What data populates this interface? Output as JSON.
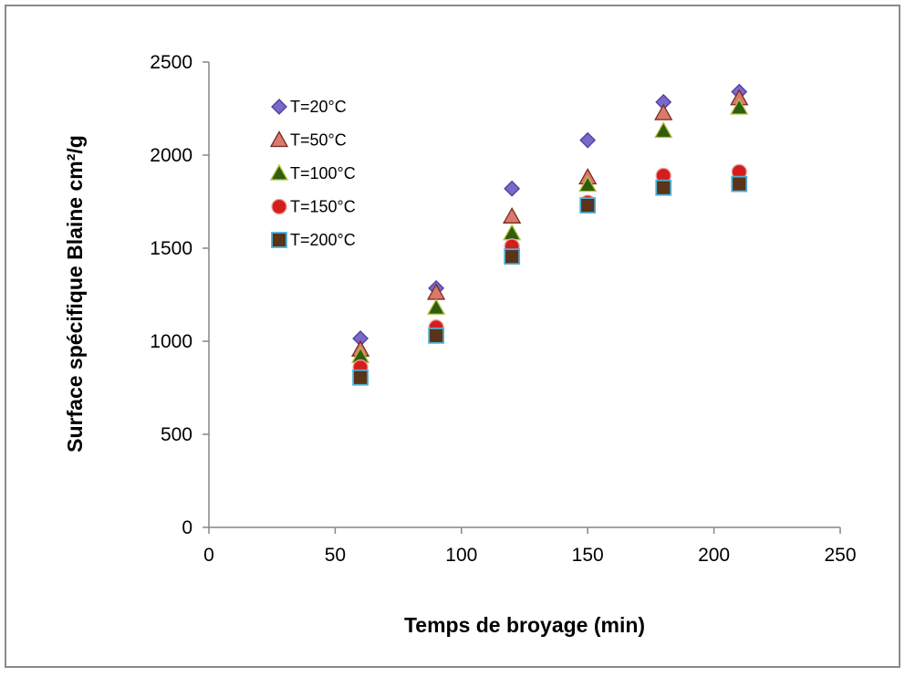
{
  "chart_data": {
    "type": "scatter",
    "title": "",
    "xlabel": "Temps de broyage (min)",
    "ylabel": "Surface spécifique Blaine cm²/g",
    "xlim": [
      0,
      250
    ],
    "ylim": [
      0,
      2500
    ],
    "x_ticks": [
      "0",
      "50",
      "100",
      "150",
      "200",
      "250"
    ],
    "y_ticks": [
      "0",
      "500",
      "1000",
      "1500",
      "2000",
      "2500"
    ],
    "grid": false,
    "legend_position": "top-left",
    "x": [
      60,
      90,
      120,
      150,
      180,
      210
    ],
    "series": [
      {
        "name": "T=20°C",
        "marker": "diamond",
        "color": "#7B68C8",
        "stroke": "#4B3FA0",
        "values": [
          1015,
          1285,
          1820,
          2080,
          2285,
          2340
        ]
      },
      {
        "name": "T=50°C",
        "marker": "triangle",
        "color": "#D97B6C",
        "stroke": "#7A2A20",
        "values": [
          955,
          1260,
          1670,
          1880,
          2225,
          2305
        ]
      },
      {
        "name": "T=100°C",
        "marker": "triangle",
        "color": "#2E5E0E",
        "stroke": "#B8C040",
        "values": [
          920,
          1180,
          1580,
          1840,
          2130,
          2255
        ]
      },
      {
        "name": "T=150°C",
        "marker": "circle",
        "color": "#D41E1E",
        "stroke": "#F0A0A0",
        "values": [
          860,
          1075,
          1510,
          1745,
          1890,
          1910
        ]
      },
      {
        "name": "T=200°C",
        "marker": "square",
        "color": "#5A3418",
        "stroke": "#4FB0D8",
        "values": [
          805,
          1030,
          1455,
          1730,
          1825,
          1845
        ]
      }
    ]
  }
}
